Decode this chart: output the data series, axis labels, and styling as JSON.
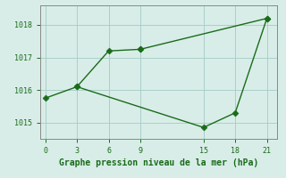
{
  "line1_x": [
    3,
    6,
    9
  ],
  "line1_y": [
    1016.1,
    1017.2,
    1017.25
  ],
  "line2_x": [
    0,
    3,
    15,
    18,
    21
  ],
  "line2_y": [
    1015.75,
    1016.1,
    1014.85,
    1015.3,
    1018.2
  ],
  "line3_x": [
    9,
    21
  ],
  "line3_y": [
    1017.25,
    1018.2
  ],
  "color": "#1a6b1a",
  "bg_color": "#d8ede8",
  "grid_color": "#aacfca",
  "spine_color": "#888888",
  "xlabel": "Graphe pression niveau de la mer (hPa)",
  "xlim": [
    -0.5,
    22
  ],
  "ylim": [
    1014.5,
    1018.6
  ],
  "xticks": [
    0,
    3,
    6,
    9,
    15,
    18,
    21
  ],
  "yticks": [
    1015,
    1016,
    1017,
    1018
  ],
  "tick_fontsize": 6,
  "xlabel_fontsize": 7
}
